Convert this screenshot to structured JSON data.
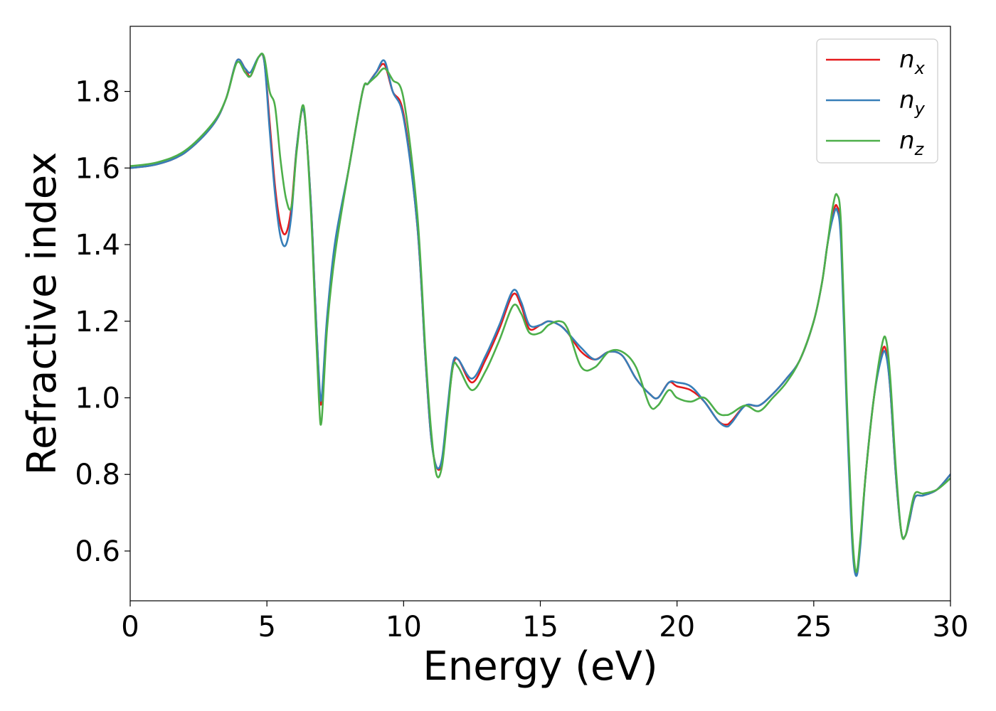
{
  "chart_data": {
    "type": "line",
    "title": "",
    "xlabel": "Energy (eV)",
    "ylabel": "Refractive index",
    "xlim": [
      0,
      30
    ],
    "ylim": [
      0.47,
      1.97
    ],
    "xticks": [
      0,
      5,
      10,
      15,
      20,
      25,
      30
    ],
    "yticks": [
      0.6,
      0.8,
      1.0,
      1.2,
      1.4,
      1.6,
      1.8
    ],
    "xtick_labels": [
      "0",
      "5",
      "10",
      "15",
      "20",
      "25",
      "30"
    ],
    "ytick_labels": [
      "0.6",
      "0.8",
      "1.0",
      "1.2",
      "1.4",
      "1.6",
      "1.8"
    ],
    "grid": false,
    "legend_position": "top-right",
    "series": [
      {
        "name": "n_x",
        "legend_base": "n",
        "legend_sub": "x",
        "color": "#e41a1c",
        "x": [
          0,
          1,
          2,
          3,
          3.5,
          3.9,
          4.2,
          4.4,
          4.7,
          4.9,
          5.1,
          5.3,
          5.5,
          5.7,
          5.9,
          6.1,
          6.35,
          6.6,
          6.75,
          6.9,
          7.0,
          7.2,
          7.5,
          8.0,
          8.5,
          8.7,
          9.0,
          9.3,
          9.6,
          10.0,
          10.5,
          10.8,
          11.0,
          11.2,
          11.4,
          11.6,
          11.8,
          12.0,
          12.5,
          13.0,
          13.5,
          14.0,
          14.3,
          14.6,
          15.0,
          15.3,
          15.7,
          16.0,
          16.5,
          17.0,
          17.5,
          18.0,
          18.5,
          19.0,
          19.3,
          19.7,
          20.0,
          20.5,
          21.0,
          21.5,
          21.8,
          22.0,
          22.5,
          23.0,
          23.5,
          24.0,
          24.5,
          25.0,
          25.3,
          25.5,
          25.7,
          25.85,
          26.0,
          26.2,
          26.4,
          26.55,
          26.7,
          26.9,
          27.2,
          27.5,
          27.65,
          27.8,
          28.0,
          28.2,
          28.35,
          28.5,
          28.7,
          29.0,
          29.5,
          30.0
        ],
        "y": [
          1.6,
          1.61,
          1.64,
          1.71,
          1.78,
          1.88,
          1.86,
          1.84,
          1.89,
          1.88,
          1.72,
          1.55,
          1.45,
          1.43,
          1.5,
          1.66,
          1.75,
          1.52,
          1.28,
          1.05,
          0.99,
          1.2,
          1.4,
          1.6,
          1.8,
          1.82,
          1.85,
          1.87,
          1.8,
          1.74,
          1.45,
          1.1,
          0.9,
          0.82,
          0.83,
          0.96,
          1.08,
          1.1,
          1.04,
          1.1,
          1.18,
          1.27,
          1.24,
          1.18,
          1.19,
          1.2,
          1.19,
          1.17,
          1.12,
          1.1,
          1.12,
          1.11,
          1.05,
          1.01,
          1.0,
          1.04,
          1.03,
          1.02,
          0.99,
          0.94,
          0.93,
          0.94,
          0.98,
          0.98,
          1.01,
          1.05,
          1.1,
          1.2,
          1.3,
          1.4,
          1.48,
          1.5,
          1.42,
          1.0,
          0.65,
          0.54,
          0.62,
          0.8,
          1.0,
          1.12,
          1.12,
          1.02,
          0.8,
          0.65,
          0.64,
          0.68,
          0.74,
          0.745,
          0.76,
          0.8
        ]
      },
      {
        "name": "n_y",
        "legend_base": "n",
        "legend_sub": "y",
        "color": "#377eb8",
        "x": [
          0,
          1,
          2,
          3,
          3.5,
          3.9,
          4.2,
          4.4,
          4.7,
          4.9,
          5.1,
          5.3,
          5.5,
          5.7,
          5.9,
          6.1,
          6.35,
          6.6,
          6.75,
          6.9,
          7.0,
          7.2,
          7.5,
          8.0,
          8.5,
          8.7,
          9.0,
          9.3,
          9.6,
          10.0,
          10.5,
          10.8,
          11.0,
          11.2,
          11.4,
          11.6,
          11.8,
          12.0,
          12.5,
          13.0,
          13.5,
          14.0,
          14.3,
          14.6,
          15.0,
          15.3,
          15.7,
          16.0,
          16.5,
          17.0,
          17.5,
          18.0,
          18.5,
          19.0,
          19.3,
          19.7,
          20.0,
          20.5,
          21.0,
          21.5,
          21.8,
          22.0,
          22.5,
          23.0,
          23.5,
          24.0,
          24.5,
          25.0,
          25.3,
          25.5,
          25.7,
          25.85,
          26.0,
          26.2,
          26.4,
          26.55,
          26.7,
          26.9,
          27.2,
          27.5,
          27.65,
          27.8,
          28.0,
          28.2,
          28.35,
          28.5,
          28.7,
          29.0,
          29.5,
          30.0
        ],
        "y": [
          1.6,
          1.61,
          1.64,
          1.71,
          1.78,
          1.88,
          1.86,
          1.85,
          1.89,
          1.88,
          1.7,
          1.53,
          1.42,
          1.4,
          1.48,
          1.66,
          1.75,
          1.52,
          1.28,
          1.06,
          1.0,
          1.21,
          1.41,
          1.6,
          1.8,
          1.82,
          1.85,
          1.88,
          1.8,
          1.73,
          1.45,
          1.1,
          0.9,
          0.82,
          0.84,
          0.97,
          1.09,
          1.1,
          1.05,
          1.11,
          1.19,
          1.28,
          1.25,
          1.19,
          1.19,
          1.2,
          1.19,
          1.17,
          1.13,
          1.1,
          1.12,
          1.11,
          1.05,
          1.01,
          1.0,
          1.04,
          1.04,
          1.03,
          0.99,
          0.94,
          0.925,
          0.935,
          0.98,
          0.98,
          1.01,
          1.05,
          1.1,
          1.2,
          1.3,
          1.4,
          1.47,
          1.49,
          1.4,
          0.98,
          0.63,
          0.535,
          0.61,
          0.8,
          1.0,
          1.11,
          1.11,
          1.02,
          0.8,
          0.65,
          0.64,
          0.68,
          0.74,
          0.745,
          0.76,
          0.8
        ]
      },
      {
        "name": "n_z",
        "legend_base": "n",
        "legend_sub": "z",
        "color": "#4daf4a",
        "x": [
          0,
          1,
          2,
          3,
          3.5,
          3.9,
          4.2,
          4.4,
          4.7,
          4.9,
          5.1,
          5.3,
          5.5,
          5.7,
          5.9,
          6.1,
          6.35,
          6.6,
          6.75,
          6.9,
          7.0,
          7.2,
          7.5,
          8.0,
          8.5,
          8.7,
          9.0,
          9.3,
          9.6,
          10.0,
          10.5,
          10.8,
          11.0,
          11.2,
          11.4,
          11.6,
          11.8,
          12.0,
          12.5,
          13.0,
          13.5,
          14.0,
          14.3,
          14.6,
          15.0,
          15.3,
          15.7,
          16.0,
          16.5,
          17.0,
          17.5,
          18.0,
          18.5,
          19.0,
          19.3,
          19.7,
          20.0,
          20.5,
          21.0,
          21.5,
          21.8,
          22.0,
          22.5,
          23.0,
          23.5,
          24.0,
          24.5,
          25.0,
          25.3,
          25.5,
          25.7,
          25.85,
          26.0,
          26.2,
          26.4,
          26.55,
          26.7,
          26.9,
          27.2,
          27.5,
          27.65,
          27.8,
          28.0,
          28.2,
          28.35,
          28.5,
          28.7,
          29.0,
          29.5,
          30.0
        ],
        "y": [
          1.605,
          1.615,
          1.645,
          1.715,
          1.78,
          1.875,
          1.85,
          1.84,
          1.89,
          1.89,
          1.8,
          1.76,
          1.62,
          1.52,
          1.5,
          1.65,
          1.76,
          1.5,
          1.25,
          1.0,
          0.94,
          1.18,
          1.38,
          1.6,
          1.8,
          1.82,
          1.84,
          1.86,
          1.83,
          1.78,
          1.48,
          1.12,
          0.92,
          0.8,
          0.82,
          0.95,
          1.08,
          1.08,
          1.02,
          1.07,
          1.15,
          1.24,
          1.22,
          1.17,
          1.17,
          1.19,
          1.2,
          1.18,
          1.08,
          1.08,
          1.12,
          1.12,
          1.08,
          0.98,
          0.98,
          1.02,
          1.0,
          0.99,
          1.0,
          0.96,
          0.955,
          0.96,
          0.98,
          0.965,
          1.0,
          1.04,
          1.1,
          1.2,
          1.3,
          1.4,
          1.5,
          1.53,
          1.45,
          1.02,
          0.66,
          0.545,
          0.63,
          0.8,
          1.0,
          1.14,
          1.15,
          1.05,
          0.82,
          0.65,
          0.64,
          0.69,
          0.75,
          0.75,
          0.76,
          0.79
        ]
      }
    ]
  }
}
